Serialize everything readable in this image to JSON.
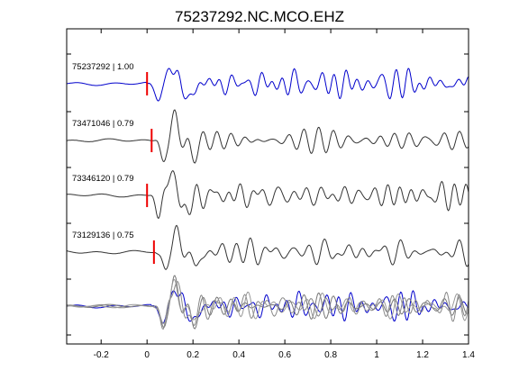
{
  "chart_data": {
    "type": "line",
    "title": "75237292.NC.MCO.EHZ",
    "xlabel": "",
    "ylabel": "",
    "xlim": [
      -0.35,
      1.4
    ],
    "x_ticks": [
      -0.2,
      0,
      0.2,
      0.4,
      0.6,
      0.8,
      1,
      1.2,
      1.4
    ],
    "x_tick_labels": [
      "-0.2",
      "0",
      "0.2",
      "0.4",
      "0.6",
      "0.8",
      "1",
      "1.2",
      "1.4"
    ],
    "grid": false,
    "traces": [
      {
        "id": "75237292",
        "correlation": "1.00",
        "label": "75237292 | 1.00",
        "color": "#0000cc",
        "pick_time": 0.0,
        "seed": 1
      },
      {
        "id": "73471046",
        "correlation": "0.79",
        "label": "73471046 | 0.79",
        "color": "#333333",
        "pick_time": 0.02,
        "seed": 2
      },
      {
        "id": "73346120",
        "correlation": "0.79",
        "label": "73346120 | 0.79",
        "color": "#333333",
        "pick_time": 0.0,
        "seed": 3
      },
      {
        "id": "73129136",
        "correlation": "0.75",
        "label": "73129136 | 0.75",
        "color": "#333333",
        "pick_time": 0.03,
        "seed": 4
      }
    ],
    "overlay": {
      "colors": [
        "#0000cc",
        "#777777",
        "#888888",
        "#999999"
      ]
    },
    "pick_color": "#ee0000"
  }
}
